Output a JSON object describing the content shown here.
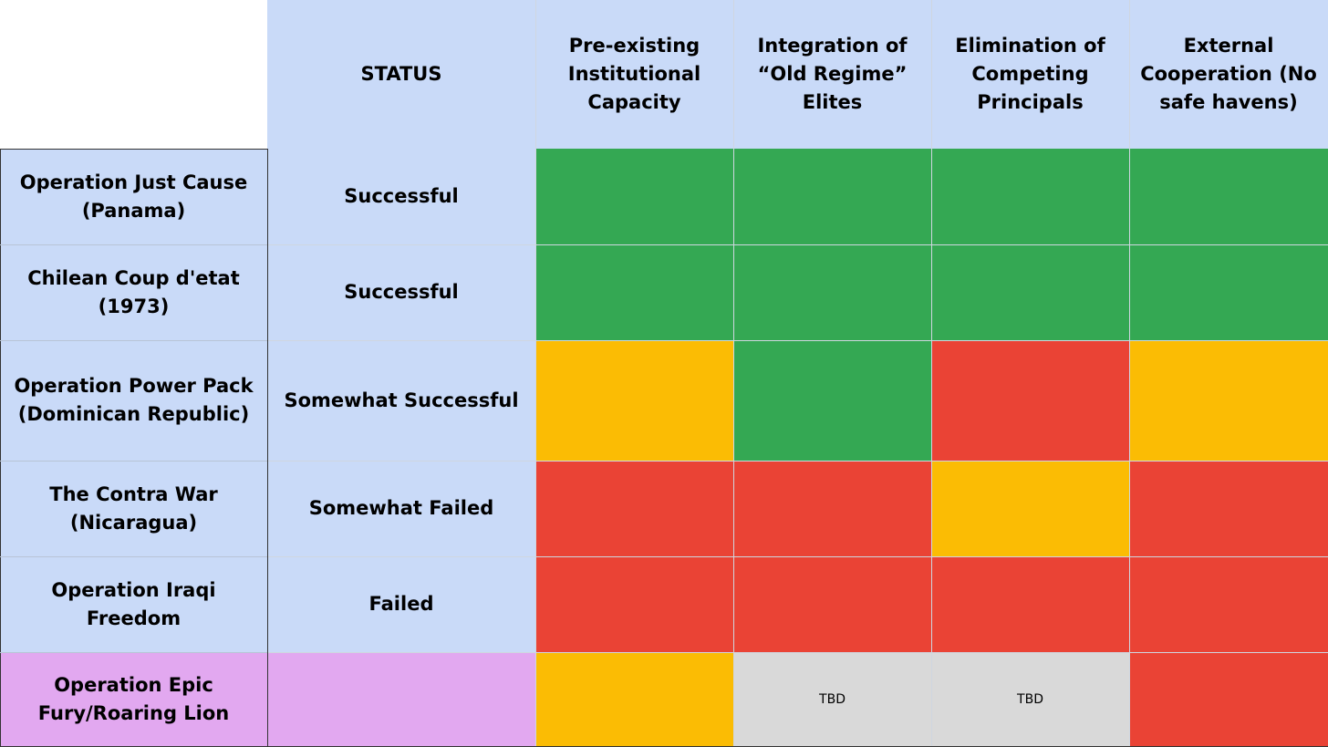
{
  "colors": {
    "header_bg": "#c9daf8",
    "label_bg": "#c9daf8",
    "highlight_bg": "#e2a8f0",
    "green": "#34a853",
    "yellow": "#fbbc04",
    "red": "#ea4335",
    "gray": "#d9d9d9",
    "empty_corner": "#ffffff"
  },
  "chart_data": {
    "type": "table",
    "title": "",
    "columns": [
      "STATUS",
      "Pre-existing Institutional Capacity",
      "Integration of “Old Regime” Elites",
      "Elimination of Competing Principals",
      "External Cooperation (No safe havens)"
    ],
    "rows": [
      {
        "label": "Operation Just Cause (Panama)",
        "status": "Successful",
        "ratings": [
          "green",
          "green",
          "green",
          "green"
        ],
        "cell_text": [
          "",
          "",
          "",
          ""
        ],
        "highlight": false
      },
      {
        "label": "Chilean Coup d'etat (1973)",
        "status": "Successful",
        "ratings": [
          "green",
          "green",
          "green",
          "green"
        ],
        "cell_text": [
          "",
          "",
          "",
          ""
        ],
        "highlight": false
      },
      {
        "label": "Operation Power Pack (Dominican Republic)",
        "status": "Somewhat Successful",
        "ratings": [
          "yellow",
          "green",
          "red",
          "yellow"
        ],
        "cell_text": [
          "",
          "",
          "",
          ""
        ],
        "highlight": false
      },
      {
        "label": "The Contra War (Nicaragua)",
        "status": "Somewhat Failed",
        "ratings": [
          "red",
          "red",
          "yellow",
          "red"
        ],
        "cell_text": [
          "",
          "",
          "",
          ""
        ],
        "highlight": false
      },
      {
        "label": "Operation Iraqi Freedom",
        "status": "Failed",
        "ratings": [
          "red",
          "red",
          "red",
          "red"
        ],
        "cell_text": [
          "",
          "",
          "",
          ""
        ],
        "highlight": false
      },
      {
        "label": "Operation Epic Fury/Roaring Lion",
        "status": "",
        "ratings": [
          "yellow",
          "gray",
          "gray",
          "red"
        ],
        "cell_text": [
          "",
          "TBD",
          "TBD",
          ""
        ],
        "highlight": true
      }
    ]
  }
}
